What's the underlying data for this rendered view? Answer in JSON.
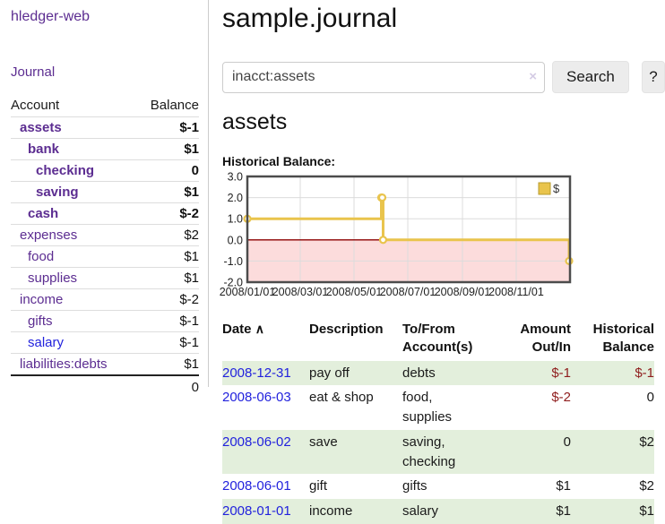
{
  "app": {
    "brand": "hledger-web",
    "nav_journal": "Journal"
  },
  "colors": {
    "link_purple": "#5c2d91",
    "link_blue": "#2222dd",
    "negative_dark": "#8f1d1d",
    "negative_soft": "#c47878",
    "row_green": "#e3efdc",
    "chart_gold": "#e9c44c",
    "chart_negative_fill": "#fcdcdc",
    "chart_zero_line": "#8b0000"
  },
  "sidebar": {
    "header": {
      "account": "Account",
      "balance": "Balance"
    },
    "rows": [
      {
        "name": "assets",
        "indent": 1,
        "bold": true,
        "balance": "$-1",
        "balance_class": "neg-dark"
      },
      {
        "name": "bank",
        "indent": 2,
        "bold": true,
        "balance": "$1",
        "balance_class": ""
      },
      {
        "name": "checking",
        "indent": 3,
        "bold": true,
        "balance": "0",
        "balance_class": ""
      },
      {
        "name": "saving",
        "indent": 3,
        "bold": true,
        "balance": "$1",
        "balance_class": ""
      },
      {
        "name": "cash",
        "indent": 2,
        "bold": true,
        "balance": "$-2",
        "balance_class": "neg-dark"
      },
      {
        "name": "expenses",
        "indent": 1,
        "bold": false,
        "balance": "$2",
        "balance_class": ""
      },
      {
        "name": "food",
        "indent": 2,
        "bold": false,
        "balance": "$1",
        "balance_class": ""
      },
      {
        "name": "supplies",
        "indent": 2,
        "bold": false,
        "balance": "$1",
        "balance_class": ""
      },
      {
        "name": "income",
        "indent": 1,
        "bold": false,
        "balance": "$-2",
        "balance_class": "neg-soft"
      },
      {
        "name": "gifts",
        "indent": 2,
        "bold": false,
        "balance": "$-1",
        "balance_class": "neg-soft"
      },
      {
        "name": "salary",
        "indent": 2,
        "bold": false,
        "blue": true,
        "balance": "$-1",
        "balance_class": "neg-soft"
      },
      {
        "name": "liabilities:debts",
        "indent": 1,
        "bold": false,
        "balance": "$1",
        "balance_class": ""
      }
    ],
    "total": "0"
  },
  "header": {
    "title": "sample.journal"
  },
  "search": {
    "value": "inacct:assets",
    "clear_icon": "×",
    "button_label": "Search",
    "help_label": "?"
  },
  "account_page": {
    "title": "assets",
    "chart_label": "Historical Balance:"
  },
  "chart_data": {
    "type": "line",
    "step": true,
    "title": "Historical Balance",
    "x": [
      "2008-01-01",
      "2008-06-01",
      "2008-06-02",
      "2008-06-03",
      "2008-12-31"
    ],
    "values": [
      1,
      2,
      2,
      0,
      -1
    ],
    "x_range": [
      "2008-01-01",
      "2009-01-01"
    ],
    "ylim": [
      -2,
      3
    ],
    "y_ticks": [
      "3.0",
      "2.0",
      "1.0",
      "0.0",
      "-1.0",
      "-2.0"
    ],
    "x_ticks": [
      "2008/01/01",
      "2008/03/01",
      "2008/05/01",
      "2008/07/01",
      "2008/09/01",
      "2008/11/01"
    ],
    "legend": [
      {
        "label": "$",
        "color": "#e9c44c"
      }
    ],
    "grid": true,
    "legend_position": "top-right"
  },
  "register": {
    "headers": {
      "date": "Date",
      "sort_icon": "∧",
      "description": "Description",
      "accounts": "To/From Account(s)",
      "amount": "Amount Out/In",
      "balance": "Historical Balance"
    },
    "rows": [
      {
        "date": "2008-12-31",
        "description": "pay off",
        "accounts": "debts",
        "amount": "$-1",
        "balance": "$-1"
      },
      {
        "date": "2008-06-03",
        "description": "eat & shop",
        "accounts": "food, supplies",
        "amount": "$-2",
        "balance": "0"
      },
      {
        "date": "2008-06-02",
        "description": "save",
        "accounts": "saving, checking",
        "amount": "0",
        "balance": "$2"
      },
      {
        "date": "2008-06-01",
        "description": "gift",
        "accounts": "gifts",
        "amount": "$1",
        "balance": "$2"
      },
      {
        "date": "2008-01-01",
        "description": "income",
        "accounts": "salary",
        "amount": "$1",
        "balance": "$1"
      }
    ]
  }
}
